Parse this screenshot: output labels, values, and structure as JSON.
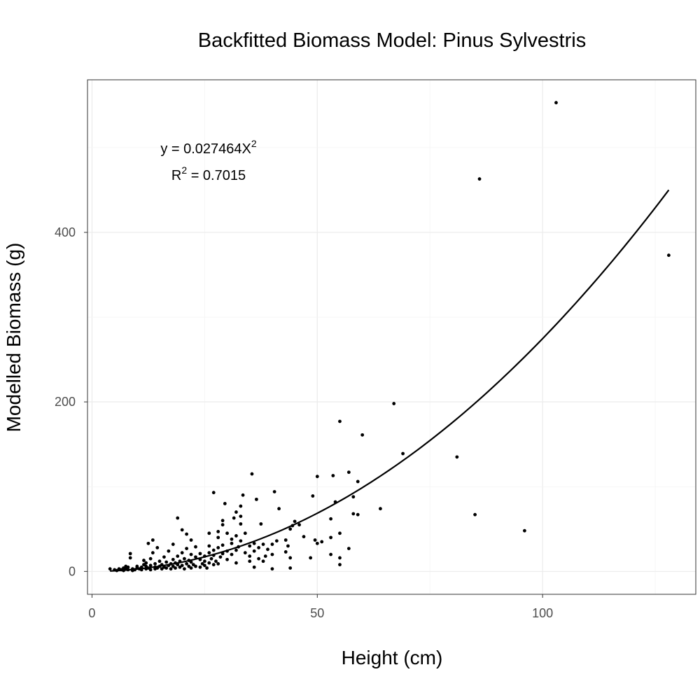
{
  "chart_data": {
    "type": "scatter",
    "title": "Backfitted Biomass Model: Pinus Sylvestris",
    "xlabel": "Height (cm)",
    "ylabel": "Modelled Biomass (g)",
    "xlim": [
      -1,
      134
    ],
    "ylim": [
      -27,
      580
    ],
    "x_ticks": [
      0,
      50,
      100
    ],
    "y_ticks": [
      0,
      200,
      400
    ],
    "grid": true,
    "legend": "none",
    "annotation": {
      "eq_prefix": "y = 0.027464X",
      "eq_sup": "2",
      "r2_prefix": "R",
      "r2_sup": "2",
      "r2_suffix": " = 0.7015"
    },
    "fit": {
      "type": "line",
      "coef": 0.027464,
      "power": 2,
      "x_range": [
        4,
        128
      ]
    },
    "points": [
      [
        4,
        3
      ],
      [
        5,
        2
      ],
      [
        5.5,
        1
      ],
      [
        6,
        3
      ],
      [
        6.5,
        2
      ],
      [
        7,
        1
      ],
      [
        7,
        4
      ],
      [
        7.5,
        3
      ],
      [
        7.5,
        6
      ],
      [
        8,
        2
      ],
      [
        8,
        5
      ],
      [
        8.5,
        16
      ],
      [
        8.5,
        21
      ],
      [
        9,
        1
      ],
      [
        9,
        3
      ],
      [
        9.5,
        2
      ],
      [
        10,
        4
      ],
      [
        10,
        6
      ],
      [
        10.5,
        3
      ],
      [
        11,
        2
      ],
      [
        11,
        5
      ],
      [
        11.5,
        8
      ],
      [
        11.5,
        13
      ],
      [
        12,
        3
      ],
      [
        12,
        6
      ],
      [
        12,
        10
      ],
      [
        12.5,
        4
      ],
      [
        12.5,
        33
      ],
      [
        13,
        2
      ],
      [
        13,
        7
      ],
      [
        13,
        15
      ],
      [
        13.5,
        22
      ],
      [
        13.5,
        37
      ],
      [
        14,
        3
      ],
      [
        14,
        5
      ],
      [
        14,
        9
      ],
      [
        14.5,
        4
      ],
      [
        14.5,
        28
      ],
      [
        15,
        6
      ],
      [
        15,
        12
      ],
      [
        15.5,
        3
      ],
      [
        15.5,
        8
      ],
      [
        16,
        5
      ],
      [
        16,
        17
      ],
      [
        16.5,
        4
      ],
      [
        16.5,
        11
      ],
      [
        17,
        7
      ],
      [
        17,
        24
      ],
      [
        17.5,
        3
      ],
      [
        17.5,
        9
      ],
      [
        18,
        6
      ],
      [
        18,
        14
      ],
      [
        18,
        32
      ],
      [
        18.5,
        4
      ],
      [
        18.5,
        10
      ],
      [
        19,
        8
      ],
      [
        19,
        18
      ],
      [
        19,
        63
      ],
      [
        19.5,
        5
      ],
      [
        19.5,
        12
      ],
      [
        20,
        7
      ],
      [
        20,
        22
      ],
      [
        20,
        49
      ],
      [
        20.5,
        3
      ],
      [
        20.5,
        15
      ],
      [
        21,
        9
      ],
      [
        21,
        27
      ],
      [
        21,
        44
      ],
      [
        21.5,
        6
      ],
      [
        21.5,
        13
      ],
      [
        22,
        4
      ],
      [
        22,
        11
      ],
      [
        22,
        20
      ],
      [
        22,
        37
      ],
      [
        22.5,
        8
      ],
      [
        23,
        6
      ],
      [
        23,
        17
      ],
      [
        23,
        29
      ],
      [
        24,
        5
      ],
      [
        24,
        14
      ],
      [
        24,
        21
      ],
      [
        24.5,
        9
      ],
      [
        25,
        7
      ],
      [
        25,
        12
      ],
      [
        25,
        18
      ],
      [
        25.5,
        4
      ],
      [
        26,
        10
      ],
      [
        26,
        22
      ],
      [
        26,
        30
      ],
      [
        26,
        45
      ],
      [
        26.5,
        15
      ],
      [
        27,
        8
      ],
      [
        27,
        19
      ],
      [
        27,
        25
      ],
      [
        27,
        93
      ],
      [
        27.5,
        12
      ],
      [
        28,
        9
      ],
      [
        28,
        28
      ],
      [
        28,
        40
      ],
      [
        28,
        47
      ],
      [
        28.5,
        17
      ],
      [
        29,
        21
      ],
      [
        29,
        31
      ],
      [
        29,
        55
      ],
      [
        29,
        60
      ],
      [
        29.5,
        80
      ],
      [
        30,
        14
      ],
      [
        30,
        24
      ],
      [
        30,
        45
      ],
      [
        31,
        20
      ],
      [
        31,
        33
      ],
      [
        31,
        38
      ],
      [
        31.5,
        63
      ],
      [
        32,
        10
      ],
      [
        32,
        25
      ],
      [
        32,
        42
      ],
      [
        32,
        70
      ],
      [
        32.5,
        29
      ],
      [
        33,
        36
      ],
      [
        33,
        56
      ],
      [
        33,
        65
      ],
      [
        33,
        77
      ],
      [
        33.5,
        90
      ],
      [
        34,
        22
      ],
      [
        34,
        45
      ],
      [
        35,
        12
      ],
      [
        35,
        18
      ],
      [
        35,
        30
      ],
      [
        35.5,
        115
      ],
      [
        36,
        5
      ],
      [
        36,
        24
      ],
      [
        36,
        33
      ],
      [
        36.5,
        85
      ],
      [
        37,
        15
      ],
      [
        37,
        28
      ],
      [
        37.5,
        56
      ],
      [
        38,
        12
      ],
      [
        38,
        32
      ],
      [
        38.5,
        18
      ],
      [
        39,
        26
      ],
      [
        40,
        3
      ],
      [
        40,
        20
      ],
      [
        40,
        32
      ],
      [
        40.5,
        94
      ],
      [
        41,
        36
      ],
      [
        41.5,
        74
      ],
      [
        43,
        23
      ],
      [
        43,
        37
      ],
      [
        43.5,
        30
      ],
      [
        44,
        4
      ],
      [
        44,
        16
      ],
      [
        44,
        50
      ],
      [
        44.5,
        54
      ],
      [
        45,
        59
      ],
      [
        46,
        55
      ],
      [
        47,
        41
      ],
      [
        48.5,
        16
      ],
      [
        49,
        89
      ],
      [
        49.5,
        37
      ],
      [
        50,
        33
      ],
      [
        50,
        112
      ],
      [
        51,
        35
      ],
      [
        53,
        20
      ],
      [
        53,
        40
      ],
      [
        53,
        62
      ],
      [
        53.5,
        113
      ],
      [
        54,
        82
      ],
      [
        55,
        8
      ],
      [
        55,
        16
      ],
      [
        55,
        45
      ],
      [
        55,
        177
      ],
      [
        57,
        27
      ],
      [
        57,
        117
      ],
      [
        58,
        68
      ],
      [
        58,
        88
      ],
      [
        59,
        67
      ],
      [
        59,
        106
      ],
      [
        60,
        161
      ],
      [
        64,
        74
      ],
      [
        67,
        198
      ],
      [
        69,
        139
      ],
      [
        81,
        135
      ],
      [
        85,
        67
      ],
      [
        86,
        463
      ],
      [
        96,
        48
      ],
      [
        103,
        553
      ],
      [
        128,
        373
      ]
    ]
  }
}
